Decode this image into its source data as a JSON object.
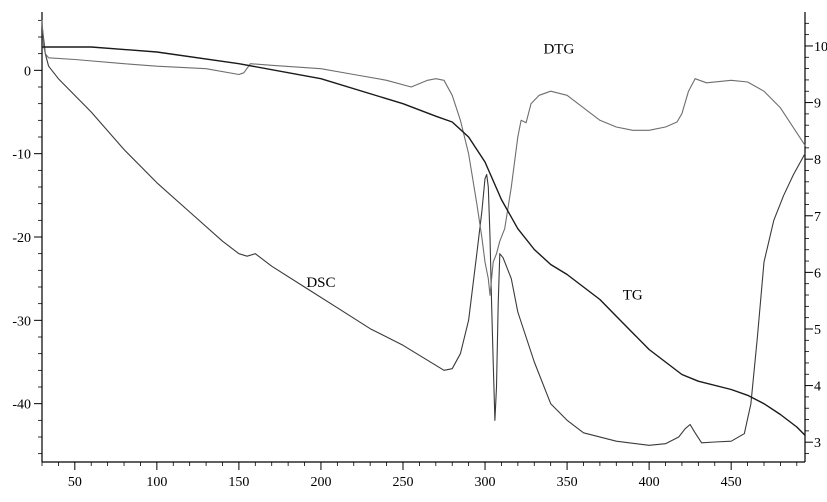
{
  "chart_data": {
    "type": "line",
    "title": "",
    "xlabel": "",
    "ylabel": "",
    "y2label": "",
    "xlim": [
      30,
      495
    ],
    "ylim": [
      -47,
      7
    ],
    "y2lim": [
      2.65,
      10.6
    ],
    "grid": false,
    "x_ticks": [
      50,
      100,
      150,
      200,
      250,
      300,
      350,
      400,
      450
    ],
    "y_ticks": [
      0,
      -10,
      -20,
      -30,
      -40
    ],
    "y2_ticks": [
      3,
      4,
      5,
      6,
      7,
      8,
      9,
      10
    ],
    "x_tick_labels": [
      "50",
      "100",
      "150",
      "200",
      "250",
      "300",
      "350",
      "400",
      "450"
    ],
    "y_tick_labels": [
      "0",
      "-10",
      "-20",
      "-30",
      "-40"
    ],
    "y2_tick_labels": [
      "3",
      "4",
      "5",
      "6",
      "7",
      "8",
      "9",
      "10"
    ],
    "series": [
      {
        "name": "DSC",
        "axis": "left",
        "color": "#3a3a3a",
        "label_at": [
          200,
          -26
        ],
        "points": [
          [
            30,
            5.5
          ],
          [
            32,
            2
          ],
          [
            34,
            0.5
          ],
          [
            40,
            -1
          ],
          [
            60,
            -5
          ],
          [
            80,
            -9.5
          ],
          [
            100,
            -13.5
          ],
          [
            120,
            -17
          ],
          [
            140,
            -20.5
          ],
          [
            150,
            -22
          ],
          [
            155,
            -22.3
          ],
          [
            160,
            -22
          ],
          [
            170,
            -23.5
          ],
          [
            190,
            -26
          ],
          [
            210,
            -28.5
          ],
          [
            230,
            -31
          ],
          [
            250,
            -33
          ],
          [
            265,
            -34.8
          ],
          [
            275,
            -36
          ],
          [
            280,
            -35.8
          ],
          [
            285,
            -34
          ],
          [
            290,
            -30
          ],
          [
            295,
            -22
          ],
          [
            298,
            -17
          ],
          [
            300,
            -13
          ],
          [
            301,
            -12.5
          ],
          [
            302,
            -14
          ],
          [
            303,
            -20
          ],
          [
            304,
            -28
          ],
          [
            305,
            -35
          ],
          [
            306,
            -42
          ],
          [
            307,
            -38
          ],
          [
            308,
            -28
          ],
          [
            309,
            -22
          ],
          [
            311,
            -22.5
          ],
          [
            313,
            -23.5
          ],
          [
            316,
            -25
          ],
          [
            320,
            -29
          ],
          [
            330,
            -35
          ],
          [
            340,
            -40
          ],
          [
            350,
            -42
          ],
          [
            360,
            -43.5
          ],
          [
            380,
            -44.5
          ],
          [
            400,
            -45
          ],
          [
            410,
            -44.8
          ],
          [
            418,
            -44
          ],
          [
            422,
            -43
          ],
          [
            425,
            -42.5
          ],
          [
            428,
            -43.5
          ],
          [
            432,
            -44.7
          ],
          [
            440,
            -44.6
          ],
          [
            450,
            -44.5
          ],
          [
            458,
            -43.6
          ],
          [
            462,
            -40
          ],
          [
            466,
            -32
          ],
          [
            470,
            -23
          ],
          [
            476,
            -18
          ],
          [
            482,
            -15
          ],
          [
            488,
            -12.5
          ],
          [
            495,
            -10
          ]
        ]
      },
      {
        "name": "DTG",
        "axis": "left",
        "color": "#6e6e6e",
        "label_at": [
          345,
          2
        ],
        "points": [
          [
            30,
            6
          ],
          [
            31,
            3
          ],
          [
            32,
            2
          ],
          [
            34,
            1.5
          ],
          [
            50,
            1.3
          ],
          [
            80,
            0.8
          ],
          [
            100,
            0.5
          ],
          [
            130,
            0.2
          ],
          [
            150,
            -0.5
          ],
          [
            153,
            -0.3
          ],
          [
            157,
            0.8
          ],
          [
            170,
            0.6
          ],
          [
            200,
            0.2
          ],
          [
            220,
            -0.5
          ],
          [
            240,
            -1.2
          ],
          [
            255,
            -2
          ],
          [
            265,
            -1.2
          ],
          [
            270,
            -1
          ],
          [
            275,
            -1.2
          ],
          [
            280,
            -3
          ],
          [
            285,
            -6
          ],
          [
            290,
            -10
          ],
          [
            295,
            -16
          ],
          [
            298,
            -20
          ],
          [
            300,
            -23
          ],
          [
            302,
            -25
          ],
          [
            303,
            -27
          ],
          [
            305,
            -23
          ],
          [
            307,
            -22
          ],
          [
            309,
            -20.5
          ],
          [
            312,
            -19
          ],
          [
            316,
            -14
          ],
          [
            320,
            -8
          ],
          [
            322,
            -6
          ],
          [
            325,
            -6.3
          ],
          [
            328,
            -4
          ],
          [
            333,
            -3
          ],
          [
            340,
            -2.5
          ],
          [
            350,
            -3
          ],
          [
            360,
            -4.5
          ],
          [
            370,
            -6
          ],
          [
            380,
            -6.8
          ],
          [
            390,
            -7.2
          ],
          [
            400,
            -7.2
          ],
          [
            410,
            -6.8
          ],
          [
            417,
            -6.2
          ],
          [
            420,
            -5.2
          ],
          [
            424,
            -2.5
          ],
          [
            428,
            -1
          ],
          [
            435,
            -1.5
          ],
          [
            450,
            -1.2
          ],
          [
            460,
            -1.4
          ],
          [
            470,
            -2.5
          ],
          [
            480,
            -4.5
          ],
          [
            490,
            -7.5
          ],
          [
            495,
            -9
          ]
        ]
      },
      {
        "name": "TG",
        "axis": "left",
        "color": "#1a1a1a",
        "label_at": [
          390,
          -27.5
        ],
        "points": [
          [
            30,
            2.8
          ],
          [
            60,
            2.8
          ],
          [
            100,
            2.2
          ],
          [
            150,
            0.8
          ],
          [
            200,
            -1
          ],
          [
            250,
            -4
          ],
          [
            270,
            -5.5
          ],
          [
            280,
            -6.2
          ],
          [
            290,
            -8
          ],
          [
            300,
            -11
          ],
          [
            310,
            -15.5
          ],
          [
            320,
            -19
          ],
          [
            330,
            -21.5
          ],
          [
            340,
            -23.3
          ],
          [
            350,
            -24.5
          ],
          [
            360,
            -26
          ],
          [
            370,
            -27.5
          ],
          [
            380,
            -29.5
          ],
          [
            400,
            -33.5
          ],
          [
            420,
            -36.5
          ],
          [
            430,
            -37.3
          ],
          [
            450,
            -38.3
          ],
          [
            460,
            -39
          ],
          [
            470,
            -40
          ],
          [
            480,
            -41.3
          ],
          [
            490,
            -42.8
          ],
          [
            495,
            -43.8
          ]
        ]
      }
    ]
  }
}
